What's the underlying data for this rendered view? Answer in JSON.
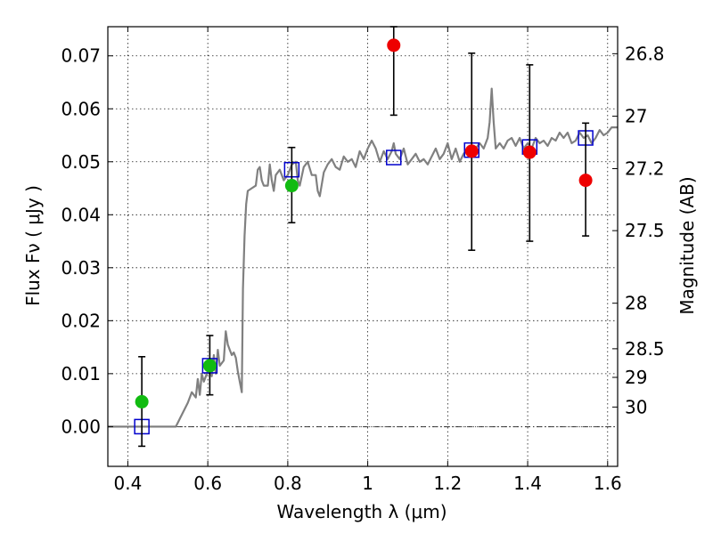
{
  "chart_data": {
    "type": "scatter",
    "xlabel": "Wavelength  λ (μm)",
    "ylabel": "Flux  Fν  ( μJy )",
    "y2label": "Magnitude (AB)",
    "xlim": [
      0.35,
      1.625
    ],
    "ylim": [
      -0.0075,
      0.0755
    ],
    "x_ticks": [
      0.4,
      0.6,
      0.8,
      1.0,
      1.2,
      1.4,
      1.6
    ],
    "x_tick_labels": [
      "0.4",
      "0.6",
      "0.8",
      "1",
      "1.2",
      "1.4",
      "1.6"
    ],
    "y_ticks": [
      0.0,
      0.01,
      0.02,
      0.03,
      0.04,
      0.05,
      0.06,
      0.07
    ],
    "y_tick_labels": [
      "0.00",
      "0.01",
      "0.02",
      "0.03",
      "0.04",
      "0.05",
      "0.06",
      "0.07"
    ],
    "y2_ticks": [
      {
        "label": "26.8",
        "flux": 0.0704
      },
      {
        "label": "27",
        "flux": 0.0586
      },
      {
        "label": "27.2",
        "flux": 0.0487
      },
      {
        "label": "27.5",
        "flux": 0.037
      },
      {
        "label": "28",
        "flux": 0.0233
      },
      {
        "label": "28.5",
        "flux": 0.0147
      },
      {
        "label": "29",
        "flux": 0.0093
      },
      {
        "label": "30",
        "flux": 0.0037
      }
    ],
    "grid": true,
    "zero_line": 0.0,
    "colors": {
      "template": "#808080",
      "model": "#0000cc",
      "green": "#11bb11",
      "red": "#ee0000",
      "errorbar": "#000000"
    },
    "series": [
      {
        "kind": "template-line",
        "points": [
          [
            0.35,
            0.0
          ],
          [
            0.52,
            0.0
          ],
          [
            0.53,
            0.0015
          ],
          [
            0.55,
            0.0045
          ],
          [
            0.56,
            0.0065
          ],
          [
            0.57,
            0.0055
          ],
          [
            0.575,
            0.009
          ],
          [
            0.58,
            0.006
          ],
          [
            0.585,
            0.01
          ],
          [
            0.59,
            0.0085
          ],
          [
            0.6,
            0.0105
          ],
          [
            0.605,
            0.0125
          ],
          [
            0.61,
            0.0095
          ],
          [
            0.615,
            0.0135
          ],
          [
            0.62,
            0.01
          ],
          [
            0.625,
            0.0145
          ],
          [
            0.63,
            0.0115
          ],
          [
            0.64,
            0.0125
          ],
          [
            0.645,
            0.018
          ],
          [
            0.65,
            0.0155
          ],
          [
            0.655,
            0.0145
          ],
          [
            0.66,
            0.0135
          ],
          [
            0.665,
            0.014
          ],
          [
            0.67,
            0.013
          ],
          [
            0.675,
            0.0105
          ],
          [
            0.68,
            0.0085
          ],
          [
            0.685,
            0.0065
          ],
          [
            0.688,
            0.026
          ],
          [
            0.692,
            0.036
          ],
          [
            0.696,
            0.042
          ],
          [
            0.7,
            0.0445
          ],
          [
            0.71,
            0.045
          ],
          [
            0.72,
            0.0455
          ],
          [
            0.725,
            0.0485
          ],
          [
            0.73,
            0.049
          ],
          [
            0.735,
            0.0465
          ],
          [
            0.74,
            0.0455
          ],
          [
            0.75,
            0.0455
          ],
          [
            0.755,
            0.0495
          ],
          [
            0.76,
            0.0465
          ],
          [
            0.765,
            0.0445
          ],
          [
            0.77,
            0.0475
          ],
          [
            0.78,
            0.0485
          ],
          [
            0.79,
            0.0465
          ],
          [
            0.8,
            0.0475
          ],
          [
            0.81,
            0.0495
          ],
          [
            0.82,
            0.05
          ],
          [
            0.825,
            0.0465
          ],
          [
            0.83,
            0.0455
          ],
          [
            0.84,
            0.049
          ],
          [
            0.85,
            0.05
          ],
          [
            0.86,
            0.0475
          ],
          [
            0.87,
            0.0475
          ],
          [
            0.875,
            0.0445
          ],
          [
            0.88,
            0.0435
          ],
          [
            0.89,
            0.048
          ],
          [
            0.9,
            0.0495
          ],
          [
            0.91,
            0.0505
          ],
          [
            0.92,
            0.049
          ],
          [
            0.93,
            0.0485
          ],
          [
            0.94,
            0.051
          ],
          [
            0.95,
            0.05
          ],
          [
            0.96,
            0.0505
          ],
          [
            0.97,
            0.049
          ],
          [
            0.98,
            0.052
          ],
          [
            0.99,
            0.0505
          ],
          [
            1.0,
            0.0525
          ],
          [
            1.01,
            0.054
          ],
          [
            1.02,
            0.0525
          ],
          [
            1.03,
            0.05
          ],
          [
            1.04,
            0.052
          ],
          [
            1.05,
            0.0505
          ],
          [
            1.06,
            0.052
          ],
          [
            1.065,
            0.0535
          ],
          [
            1.07,
            0.0515
          ],
          [
            1.08,
            0.0505
          ],
          [
            1.09,
            0.0525
          ],
          [
            1.1,
            0.0495
          ],
          [
            1.11,
            0.0505
          ],
          [
            1.12,
            0.0515
          ],
          [
            1.13,
            0.05
          ],
          [
            1.14,
            0.0505
          ],
          [
            1.15,
            0.0495
          ],
          [
            1.16,
            0.051
          ],
          [
            1.17,
            0.0525
          ],
          [
            1.18,
            0.0505
          ],
          [
            1.19,
            0.0515
          ],
          [
            1.2,
            0.0535
          ],
          [
            1.21,
            0.0505
          ],
          [
            1.22,
            0.0525
          ],
          [
            1.23,
            0.05
          ],
          [
            1.24,
            0.0515
          ],
          [
            1.25,
            0.0525
          ],
          [
            1.26,
            0.0515
          ],
          [
            1.27,
            0.0525
          ],
          [
            1.28,
            0.0535
          ],
          [
            1.29,
            0.0525
          ],
          [
            1.3,
            0.0545
          ],
          [
            1.305,
            0.0575
          ],
          [
            1.31,
            0.0638
          ],
          [
            1.315,
            0.0575
          ],
          [
            1.32,
            0.0525
          ],
          [
            1.33,
            0.0535
          ],
          [
            1.34,
            0.0525
          ],
          [
            1.35,
            0.054
          ],
          [
            1.36,
            0.0545
          ],
          [
            1.37,
            0.053
          ],
          [
            1.38,
            0.0545
          ],
          [
            1.39,
            0.0525
          ],
          [
            1.4,
            0.0535
          ],
          [
            1.41,
            0.0525
          ],
          [
            1.42,
            0.0545
          ],
          [
            1.43,
            0.0535
          ],
          [
            1.44,
            0.054
          ],
          [
            1.45,
            0.053
          ],
          [
            1.46,
            0.0545
          ],
          [
            1.47,
            0.054
          ],
          [
            1.48,
            0.0555
          ],
          [
            1.49,
            0.0545
          ],
          [
            1.5,
            0.0555
          ],
          [
            1.51,
            0.0535
          ],
          [
            1.52,
            0.054
          ],
          [
            1.53,
            0.0555
          ],
          [
            1.54,
            0.0545
          ],
          [
            1.55,
            0.055
          ],
          [
            1.56,
            0.0535
          ],
          [
            1.57,
            0.0545
          ],
          [
            1.58,
            0.056
          ],
          [
            1.59,
            0.055
          ],
          [
            1.6,
            0.0555
          ],
          [
            1.61,
            0.0565
          ],
          [
            1.625,
            0.0565
          ]
        ]
      },
      {
        "kind": "model-squares",
        "points": [
          [
            0.435,
            0.0
          ],
          [
            0.605,
            0.0115
          ],
          [
            0.81,
            0.0485
          ],
          [
            1.065,
            0.0508
          ],
          [
            1.26,
            0.0522
          ],
          [
            1.405,
            0.0528
          ],
          [
            1.545,
            0.0545
          ]
        ]
      },
      {
        "kind": "measurements",
        "points": [
          {
            "x": 0.435,
            "y": 0.0047,
            "lo": -0.0037,
            "hi": 0.0132,
            "color": "green"
          },
          {
            "x": 0.605,
            "y": 0.0115,
            "lo": 0.006,
            "hi": 0.0172,
            "color": "green"
          },
          {
            "x": 0.81,
            "y": 0.0455,
            "lo": 0.0385,
            "hi": 0.0527,
            "color": "green"
          },
          {
            "x": 1.065,
            "y": 0.072,
            "lo": 0.0588,
            "hi": 0.0755,
            "color": "red"
          },
          {
            "x": 1.26,
            "y": 0.052,
            "lo": 0.0333,
            "hi": 0.0705,
            "color": "red"
          },
          {
            "x": 1.405,
            "y": 0.0518,
            "lo": 0.035,
            "hi": 0.0683,
            "color": "red"
          },
          {
            "x": 1.545,
            "y": 0.0465,
            "lo": 0.036,
            "hi": 0.0573,
            "color": "red"
          }
        ]
      }
    ]
  }
}
